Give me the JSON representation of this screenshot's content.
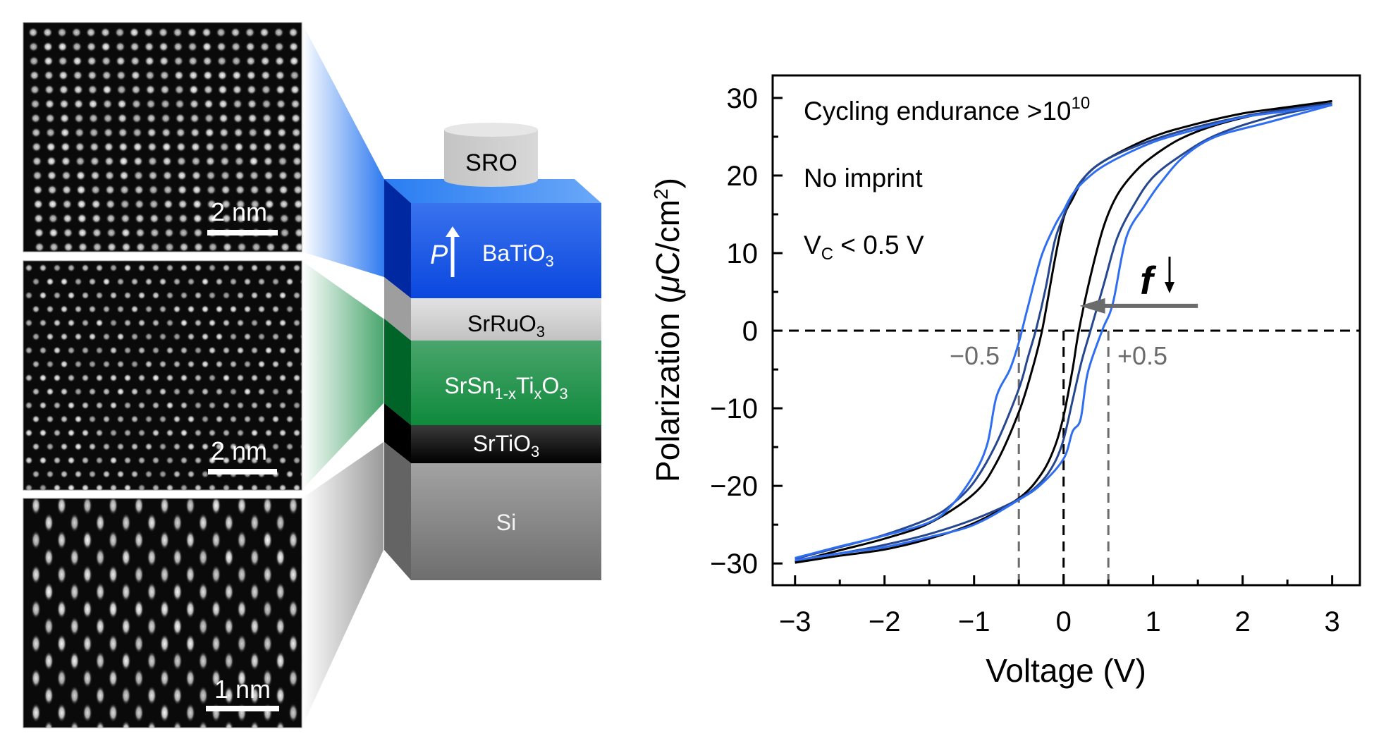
{
  "figure": {
    "tem_panels": [
      {
        "name": "BaTiO3 lattice",
        "scale_bar": "2 nm",
        "lattice": "square"
      },
      {
        "name": "SrSn1-xTixO3 lattice",
        "scale_bar": "2 nm",
        "lattice": "hex"
      },
      {
        "name": "Si lattice",
        "scale_bar": "1 nm",
        "lattice": "dumbbell"
      }
    ],
    "stack": {
      "electrode": "SRO",
      "polarization_symbol": "P",
      "layers": [
        {
          "base": "BaTiO",
          "sub1": "3",
          "color": "#1f4fe0"
        },
        {
          "base": "SrRuO",
          "sub1": "3",
          "color": "#cfcfcf"
        },
        {
          "formula_parts": [
            "SrSn",
            "1-x",
            "Ti",
            "x",
            "O",
            "3"
          ],
          "color": "#1e8c48"
        },
        {
          "base": "SrTiO",
          "sub1": "3",
          "color": "#0b0b0b"
        },
        {
          "base": "Si",
          "color": "#8a8a8a"
        }
      ]
    },
    "colors": {
      "black_curve": "#000000",
      "dark_blue_curve": "#26478f",
      "light_blue_curve": "#2f6ef0",
      "arrow": "#6b6b6b",
      "vc_guides": "#6b6b6b"
    }
  },
  "chart_data": {
    "type": "line",
    "title": "",
    "xlabel": "Voltage (V)",
    "ylabel_parts": [
      "Polarization (",
      "μ",
      "C/cm",
      "2",
      ")"
    ],
    "xlim": [
      -3.25,
      3.31
    ],
    "ylim": [
      -32.8,
      32.9
    ],
    "xticks": [
      -3,
      -2,
      -1,
      0,
      1,
      2,
      3
    ],
    "xtick_labels": [
      "−3",
      "−2",
      "−1",
      "0",
      "1",
      "2",
      "3"
    ],
    "xminor": [
      -2.5,
      -1.5,
      -0.5,
      0.5,
      1.5,
      2.5
    ],
    "yticks": [
      -30,
      -20,
      -10,
      0,
      10,
      20,
      30
    ],
    "ytick_labels": [
      "−30",
      "−20",
      "−10",
      "0",
      "10",
      "20",
      "30"
    ],
    "yminor": [
      -25,
      -15,
      -5,
      5,
      15,
      25
    ],
    "grid": false,
    "annotations": {
      "endurance_text": "Cycling endurance >10",
      "endurance_exp": "10",
      "imprint_text": "No imprint",
      "vc_main": "V",
      "vc_sub": "C",
      "vc_rest": " < 0.5 V",
      "neg_label": "−0.5",
      "pos_label": "+0.5",
      "freq_symbol": "f",
      "freq_arrow": "↓"
    },
    "guides": {
      "zero_line_y": 0,
      "zero_line_x": 0,
      "vc_lines_x": [
        -0.5,
        0.5
      ],
      "arrow_from": [
        1.5,
        3.2
      ],
      "arrow_to": [
        0.18,
        3.2
      ]
    },
    "series": [
      {
        "name": "black",
        "color": "#000000",
        "descending": [
          [
            3,
            29.6
          ],
          [
            2.3,
            28.5
          ],
          [
            2,
            28.0
          ],
          [
            1.5,
            26.7
          ],
          [
            1,
            25.0
          ],
          [
            0.5,
            22.2
          ],
          [
            0.25,
            20.0
          ],
          [
            0.1,
            17.0
          ],
          [
            0,
            14.5
          ],
          [
            -0.1,
            9.0
          ],
          [
            -0.2,
            2.5
          ],
          [
            -0.25,
            -0.5
          ],
          [
            -0.35,
            -5.0
          ],
          [
            -0.5,
            -10.5
          ],
          [
            -0.75,
            -17.0
          ],
          [
            -1,
            -21.0
          ],
          [
            -1.5,
            -24.8
          ],
          [
            -2,
            -26.8
          ],
          [
            -2.5,
            -28.3
          ],
          [
            -3,
            -29.8
          ]
        ],
        "ascending": [
          [
            -3,
            -29.9
          ],
          [
            -2.5,
            -29.0
          ],
          [
            -2,
            -28.2
          ],
          [
            -1.5,
            -26.8
          ],
          [
            -1,
            -24.8
          ],
          [
            -0.5,
            -21.6
          ],
          [
            -0.25,
            -18.5
          ],
          [
            -0.1,
            -15.0
          ],
          [
            0,
            -11.0
          ],
          [
            0.1,
            -5.0
          ],
          [
            0.17,
            0.0
          ],
          [
            0.3,
            7.0
          ],
          [
            0.45,
            13.5
          ],
          [
            0.6,
            17.5
          ],
          [
            0.8,
            20.5
          ],
          [
            1,
            22.5
          ],
          [
            1.3,
            24.7
          ],
          [
            1.7,
            26.5
          ],
          [
            2.3,
            28.2
          ],
          [
            3,
            29.6
          ]
        ]
      },
      {
        "name": "dark-blue",
        "color": "#26478f",
        "descending": [
          [
            3,
            29.3
          ],
          [
            2.3,
            28.2
          ],
          [
            2,
            27.6
          ],
          [
            1.5,
            26.3
          ],
          [
            1,
            24.6
          ],
          [
            0.5,
            22.2
          ],
          [
            0.25,
            20.0
          ],
          [
            0.1,
            17.5
          ],
          [
            0,
            14.8
          ],
          [
            -0.1,
            11.5
          ],
          [
            -0.2,
            5.5
          ],
          [
            -0.3,
            0.5
          ],
          [
            -0.4,
            -3.5
          ],
          [
            -0.5,
            -7.5
          ],
          [
            -0.75,
            -14.5
          ],
          [
            -1,
            -19.5
          ],
          [
            -1.25,
            -22.4
          ],
          [
            -1.5,
            -24.2
          ],
          [
            -2,
            -26.3
          ],
          [
            -2.5,
            -27.9
          ],
          [
            -3,
            -29.4
          ]
        ],
        "ascending": [
          [
            -3,
            -29.6
          ],
          [
            -2.5,
            -28.7
          ],
          [
            -2,
            -27.6
          ],
          [
            -1.5,
            -26.2
          ],
          [
            -1,
            -24.3
          ],
          [
            -0.5,
            -21.7
          ],
          [
            -0.25,
            -19.5
          ],
          [
            -0.1,
            -17.0
          ],
          [
            0,
            -14.0
          ],
          [
            0.1,
            -9.0
          ],
          [
            0.2,
            -4.0
          ],
          [
            0.3,
            0.0
          ],
          [
            0.45,
            6.0
          ],
          [
            0.6,
            12.0
          ],
          [
            0.8,
            16.5
          ],
          [
            1,
            19.8
          ],
          [
            1.3,
            22.5
          ],
          [
            1.7,
            25.2
          ],
          [
            2.3,
            27.5
          ],
          [
            3,
            29.2
          ]
        ]
      },
      {
        "name": "light-blue",
        "color": "#2f6ef0",
        "descending": [
          [
            3,
            29.1
          ],
          [
            2.5,
            28.3
          ],
          [
            2,
            27.5
          ],
          [
            1.5,
            26.0
          ],
          [
            1,
            24.3
          ],
          [
            0.5,
            21.6
          ],
          [
            0.25,
            19.5
          ],
          [
            0.1,
            17.6
          ],
          [
            0,
            15.5
          ],
          [
            -0.1,
            13.5
          ],
          [
            -0.25,
            9.5
          ],
          [
            -0.4,
            3.0
          ],
          [
            -0.5,
            -1.5
          ],
          [
            -0.6,
            -5.0
          ],
          [
            -0.75,
            -8.5
          ],
          [
            -0.85,
            -14.5
          ],
          [
            -1,
            -18.5
          ],
          [
            -1.25,
            -22.5
          ],
          [
            -1.5,
            -24.7
          ],
          [
            -2,
            -26.4
          ],
          [
            -2.5,
            -27.8
          ],
          [
            -3,
            -29.3
          ]
        ],
        "ascending": [
          [
            -3,
            -29.6
          ],
          [
            -2.5,
            -28.7
          ],
          [
            -2,
            -27.9
          ],
          [
            -1.5,
            -26.6
          ],
          [
            -1,
            -25.0
          ],
          [
            -0.5,
            -21.8
          ],
          [
            -0.25,
            -19.8
          ],
          [
            0,
            -16.5
          ],
          [
            0.1,
            -13.0
          ],
          [
            0.19,
            -11.4
          ],
          [
            0.27,
            -5.4
          ],
          [
            0.43,
            0.0
          ],
          [
            0.55,
            3.5
          ],
          [
            0.7,
            12.0
          ],
          [
            0.9,
            16.0
          ],
          [
            1.1,
            19.3
          ],
          [
            1.35,
            22.5
          ],
          [
            1.7,
            25.0
          ],
          [
            2.3,
            26.9
          ],
          [
            3,
            29.1
          ]
        ]
      }
    ]
  }
}
